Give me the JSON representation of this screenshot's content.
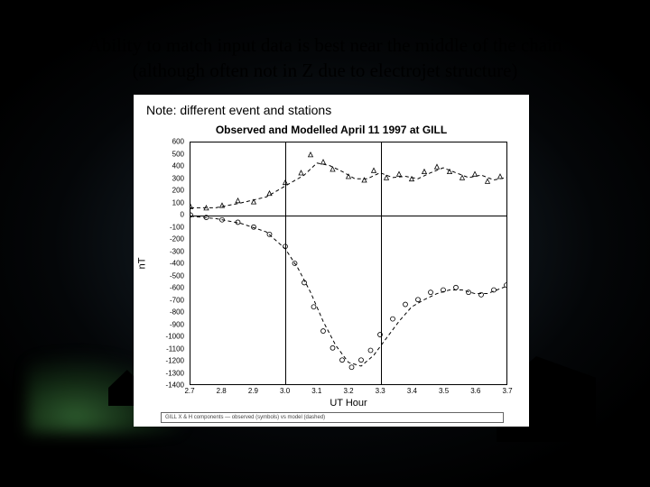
{
  "heading_line1": "Ability to match input data is best near the middle of the chain",
  "heading_line2": "(although often not in Z due to electrojet structure)",
  "note": "Note: different event and stations",
  "chart": {
    "type": "line-scatter",
    "title": "Observed and Modelled April 11 1997 at GILL",
    "xlabel": "UT Hour",
    "ylabel": "nT",
    "xlim": [
      2.7,
      3.7
    ],
    "ylim": [
      -1400,
      600
    ],
    "xtick_step": 0.1,
    "ytick_step": 100,
    "xgrid_lines": [
      3.0,
      3.3
    ],
    "ygrid_lines": [
      0
    ],
    "background_color": "#ffffff",
    "axis_color": "#000000",
    "grid_color": "#000000",
    "series": [
      {
        "name": "X observed",
        "style": "marker",
        "marker": "triangle",
        "marker_size": 5,
        "color": "#000000",
        "x": [
          2.7,
          2.75,
          2.8,
          2.85,
          2.9,
          2.95,
          3.0,
          3.05,
          3.08,
          3.12,
          3.15,
          3.2,
          3.25,
          3.28,
          3.32,
          3.36,
          3.4,
          3.44,
          3.48,
          3.52,
          3.56,
          3.6,
          3.64,
          3.68
        ],
        "y": [
          70,
          60,
          80,
          120,
          110,
          180,
          270,
          350,
          500,
          440,
          380,
          320,
          290,
          370,
          310,
          340,
          300,
          360,
          400,
          360,
          310,
          340,
          280,
          320
        ]
      },
      {
        "name": "X modelled",
        "style": "dashed-line",
        "line_width": 1,
        "color": "#000000",
        "x": [
          2.7,
          2.78,
          2.86,
          2.94,
          3.0,
          3.06,
          3.1,
          3.14,
          3.18,
          3.22,
          3.26,
          3.3,
          3.34,
          3.38,
          3.42,
          3.46,
          3.5,
          3.54,
          3.58,
          3.62,
          3.66,
          3.7
        ],
        "y": [
          60,
          60,
          100,
          150,
          240,
          330,
          430,
          410,
          360,
          300,
          300,
          350,
          310,
          320,
          300,
          350,
          390,
          350,
          310,
          330,
          290,
          310
        ]
      },
      {
        "name": "H observed",
        "style": "marker",
        "marker": "circle",
        "marker_size": 5,
        "color": "#000000",
        "x": [
          2.7,
          2.75,
          2.8,
          2.85,
          2.9,
          2.95,
          3.0,
          3.03,
          3.06,
          3.09,
          3.12,
          3.15,
          3.18,
          3.21,
          3.24,
          3.27,
          3.3,
          3.34,
          3.38,
          3.42,
          3.46,
          3.5,
          3.54,
          3.58,
          3.62,
          3.66,
          3.7
        ],
        "y": [
          0,
          -20,
          -40,
          -60,
          -100,
          -160,
          -260,
          -400,
          -560,
          -760,
          -960,
          -1100,
          -1200,
          -1260,
          -1200,
          -1120,
          -990,
          -860,
          -740,
          -700,
          -640,
          -620,
          -600,
          -640,
          -660,
          -620,
          -580
        ]
      },
      {
        "name": "H modelled",
        "style": "dashed-line",
        "line_width": 1,
        "color": "#000000",
        "x": [
          2.7,
          2.78,
          2.86,
          2.94,
          3.0,
          3.04,
          3.08,
          3.12,
          3.16,
          3.2,
          3.24,
          3.28,
          3.32,
          3.36,
          3.4,
          3.44,
          3.48,
          3.52,
          3.56,
          3.6,
          3.64,
          3.68,
          3.7
        ],
        "y": [
          -10,
          -30,
          -70,
          -140,
          -280,
          -440,
          -640,
          -880,
          -1080,
          -1220,
          -1250,
          -1160,
          -1020,
          -880,
          -760,
          -700,
          -650,
          -620,
          -620,
          -650,
          -650,
          -610,
          -590
        ]
      }
    ],
    "legend_text": "GILL X & H components — observed (symbols) vs model (dashed)"
  },
  "title_fontsize": 12,
  "label_fontsize": 11,
  "tick_fontsize": 8,
  "heading_fontsize": 21,
  "note_fontsize": 14
}
